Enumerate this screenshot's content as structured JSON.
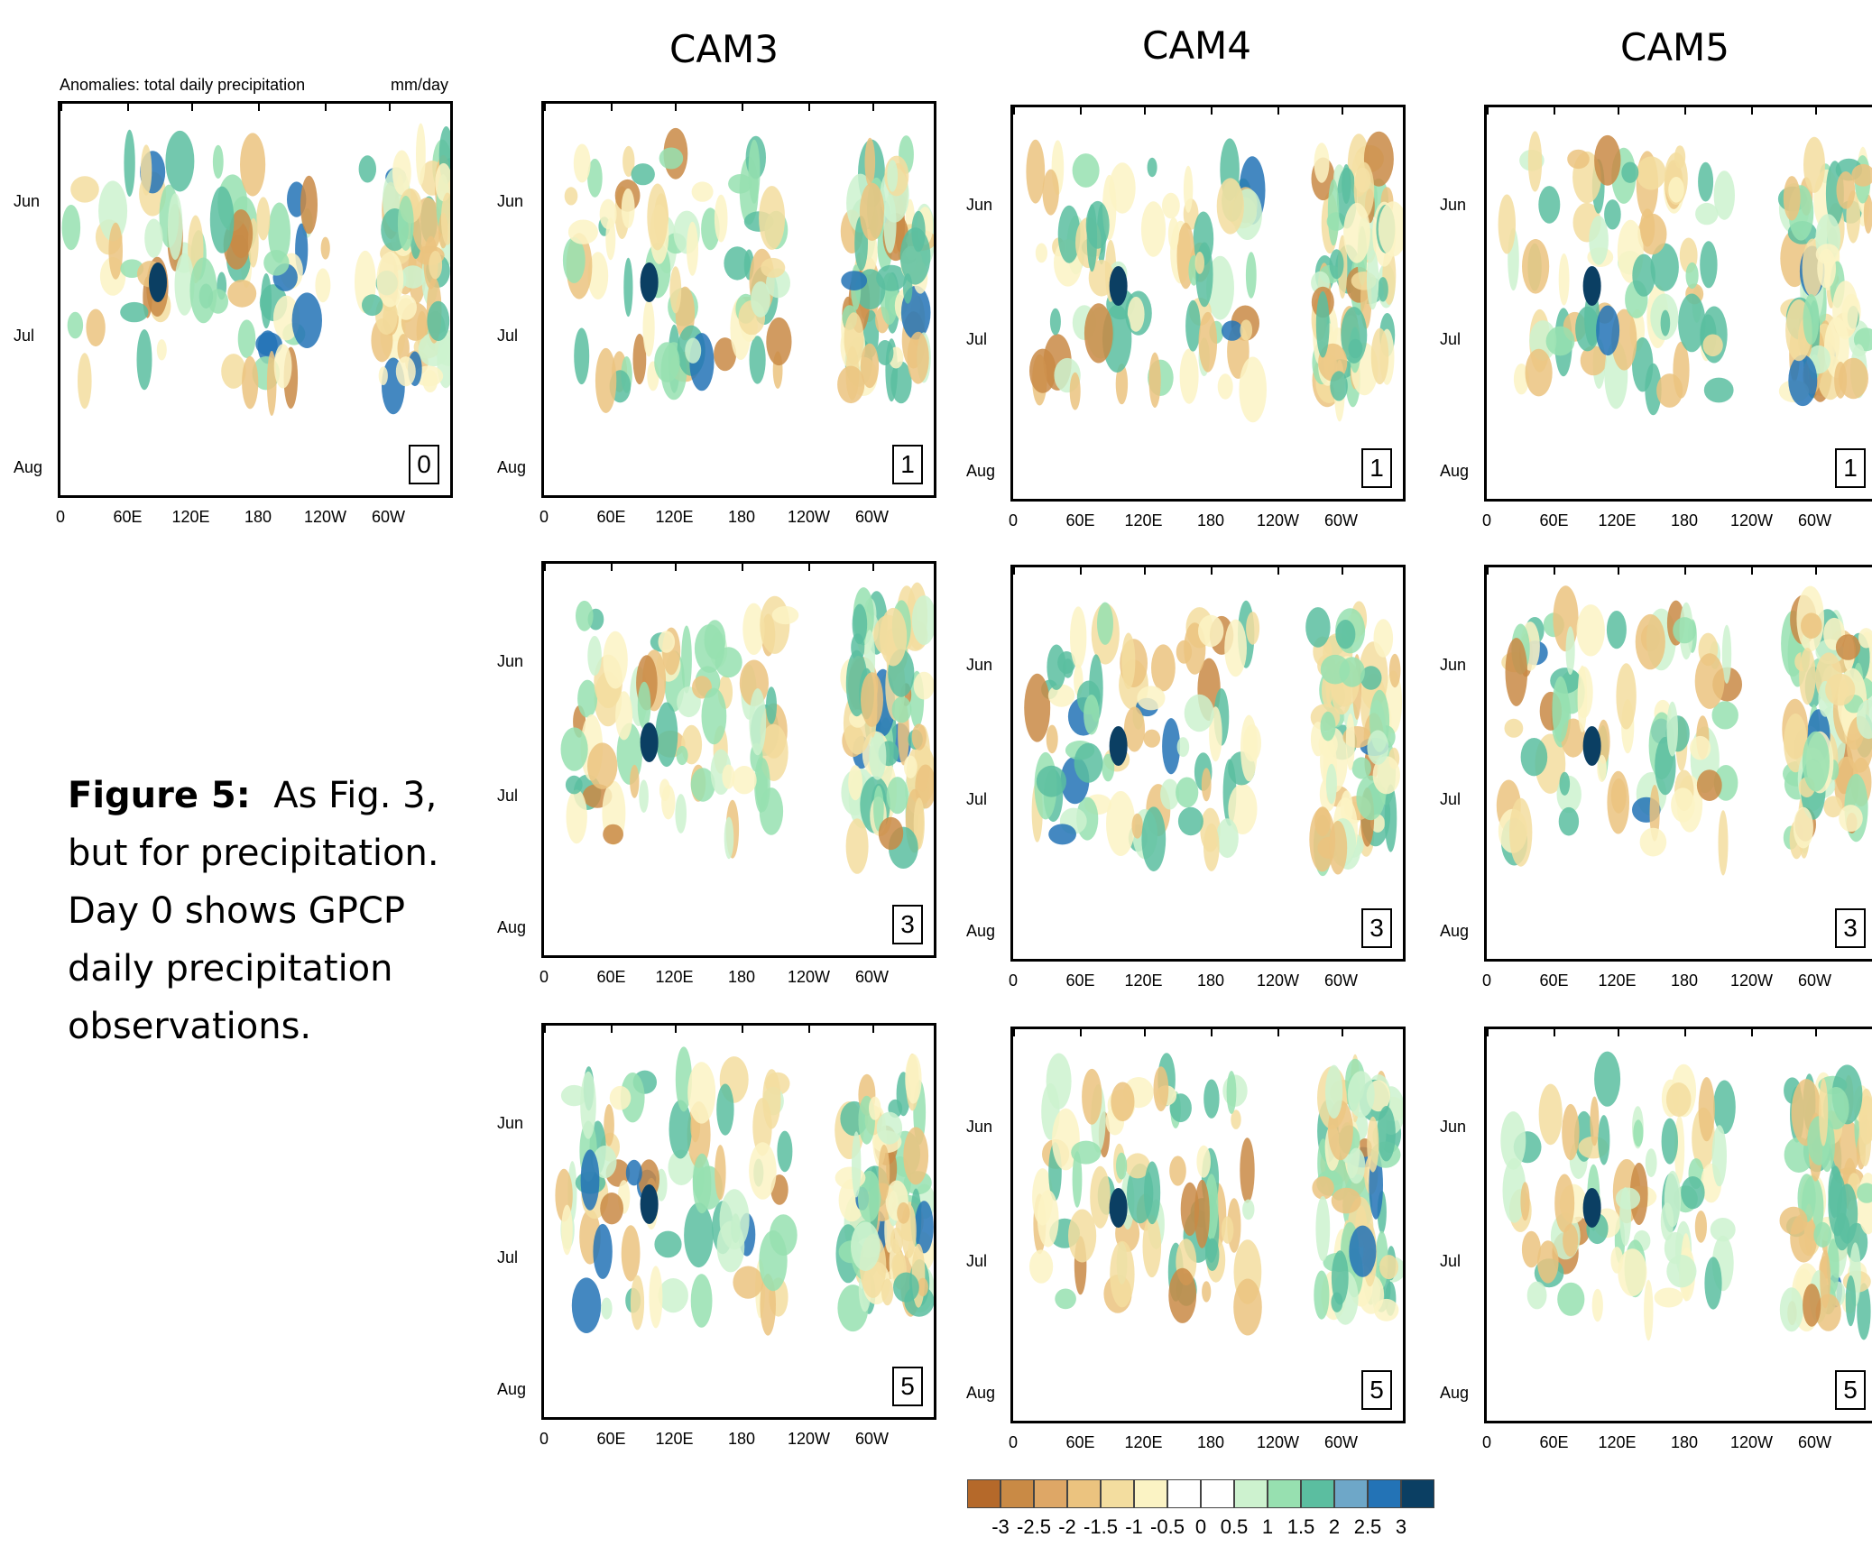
{
  "column_titles": [
    "CAM3",
    "CAM4",
    "CAM5"
  ],
  "obs_panel": {
    "title": "Anomalies: total daily precipitation",
    "units": "mm/day"
  },
  "caption": {
    "bold": "Figure 5:",
    "text": "As Fig. 3, but for precipitation. Day 0 shows GPCP daily precipitation observations."
  },
  "y_ticks": [
    "Jun",
    "Jul",
    "Aug"
  ],
  "x_ticks": [
    "0",
    "60E",
    "120E",
    "180",
    "120W",
    "60W"
  ],
  "colors": {
    "palette": [
      "#b5692a",
      "#c98a45",
      "#dea766",
      "#ebc37f",
      "#f3dd9f",
      "#fbf3c4",
      "#ffffff",
      "#ffffff",
      "#cdf2cf",
      "#97e0b0",
      "#5bbea0",
      "#6ea7c8",
      "#2373b6",
      "#0b3f63"
    ]
  },
  "chart_data": {
    "type": "heatmap",
    "variable": "total daily precipitation anomaly",
    "units": "mm/day",
    "x_axis": {
      "ticks": [
        "0",
        "60E",
        "120E",
        "180",
        "120W",
        "60W"
      ]
    },
    "y_axis": {
      "ticks": [
        "Jun",
        "Jul",
        "Aug"
      ]
    },
    "colorbar": {
      "levels": [
        "-3",
        "-2.5",
        "-2",
        "-1.5",
        "-1",
        "-0.5",
        "0",
        "0.5",
        "1",
        "1.5",
        "2",
        "2.5",
        "3"
      ],
      "values": [
        -3,
        -2.5,
        -2,
        -1.5,
        -1,
        -0.5,
        0,
        0.5,
        1,
        1.5,
        2,
        2.5,
        3
      ]
    },
    "panels": [
      {
        "label": "0",
        "column": "obs",
        "row": 0,
        "seed": 11
      },
      {
        "label": "1",
        "column": "CAM3",
        "row": 0,
        "seed": 21
      },
      {
        "label": "1",
        "column": "CAM4",
        "row": 0,
        "seed": 31
      },
      {
        "label": "1",
        "column": "CAM5",
        "row": 0,
        "seed": 41
      },
      {
        "label": "3",
        "column": "CAM3",
        "row": 1,
        "seed": 23
      },
      {
        "label": "3",
        "column": "CAM4",
        "row": 1,
        "seed": 33
      },
      {
        "label": "3",
        "column": "CAM5",
        "row": 1,
        "seed": 43
      },
      {
        "label": "5",
        "column": "CAM3",
        "row": 2,
        "seed": 25
      },
      {
        "label": "5",
        "column": "CAM4",
        "row": 2,
        "seed": 35
      },
      {
        "label": "5",
        "column": "CAM5",
        "row": 2,
        "seed": 45
      }
    ]
  }
}
